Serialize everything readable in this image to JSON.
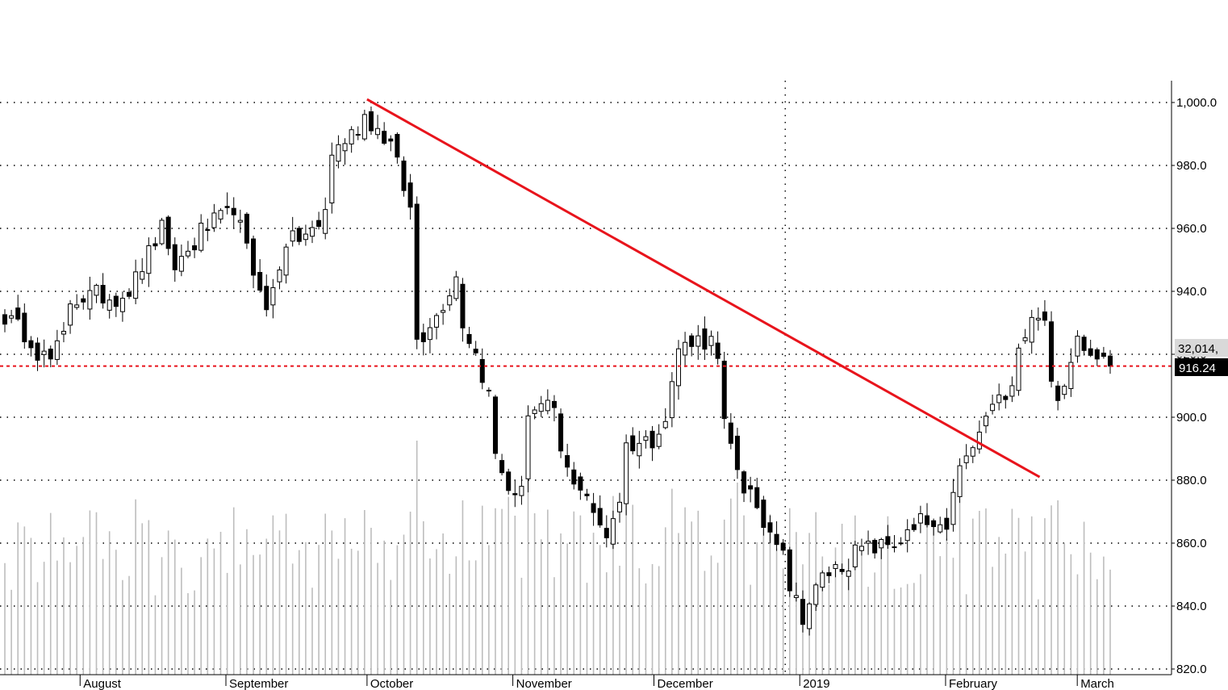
{
  "chart_data": {
    "type": "candlestick",
    "title": "",
    "xlabel": "",
    "ylabel": "",
    "ylim": [
      820,
      1000
    ],
    "y_ticks": [
      "1,000.0",
      "980.0",
      "960.0",
      "940.0",
      "920.0",
      "900.0",
      "880.0",
      "860.0",
      "840.0",
      "820.0"
    ],
    "y_tick_values": [
      1000,
      980,
      960,
      940,
      920,
      900,
      880,
      860,
      840,
      820
    ],
    "months": [
      {
        "label": "August",
        "date": "2018-08-01"
      },
      {
        "label": "September",
        "date": "2018-09-01"
      },
      {
        "label": "October",
        "date": "2018-10-01"
      },
      {
        "label": "November",
        "date": "2018-11-01"
      },
      {
        "label": "December",
        "date": "2018-12-01"
      },
      {
        "label": "2019",
        "date": "2019-01-01"
      },
      {
        "label": "February",
        "date": "2019-02-01"
      },
      {
        "label": "March",
        "date": "2019-03-01"
      }
    ],
    "date_range": [
      "2018-07-16",
      "2019-03-08"
    ],
    "last_price": 916.24,
    "last_price_label": "916.24",
    "volume_label": "32,014,",
    "trendline": {
      "start": {
        "date": "2018-10-01",
        "value": 1001
      },
      "end": {
        "date": "2019-02-21",
        "value": 881
      }
    },
    "price_line": 916.24,
    "grid": true,
    "candle_up_color": "#ffffff",
    "candle_down_color": "#000000",
    "trendline_color": "#e8141c",
    "volume_color": "#bdbdbd",
    "grid_color": "#000000",
    "anchors": [
      [
        "2018-07-16",
        932
      ],
      [
        "2018-07-20",
        925
      ],
      [
        "2018-07-25",
        918
      ],
      [
        "2018-07-30",
        937
      ],
      [
        "2018-08-03",
        939
      ],
      [
        "2018-08-08",
        938
      ],
      [
        "2018-08-13",
        944
      ],
      [
        "2018-08-17",
        960
      ],
      [
        "2018-08-21",
        948
      ],
      [
        "2018-08-24",
        955
      ],
      [
        "2018-08-29",
        962
      ],
      [
        "2018-09-03",
        967
      ],
      [
        "2018-09-06",
        946
      ],
      [
        "2018-09-10",
        933
      ],
      [
        "2018-09-13",
        956
      ],
      [
        "2018-09-17",
        957
      ],
      [
        "2018-09-20",
        960
      ],
      [
        "2018-09-24",
        984
      ],
      [
        "2018-09-28",
        992
      ],
      [
        "2018-10-01",
        996
      ],
      [
        "2018-10-04",
        989
      ],
      [
        "2018-10-08",
        980
      ],
      [
        "2018-10-10",
        966
      ],
      [
        "2018-10-11",
        925
      ],
      [
        "2018-10-16",
        932
      ],
      [
        "2018-10-19",
        945
      ],
      [
        "2018-10-24",
        920
      ],
      [
        "2018-10-29",
        888
      ],
      [
        "2018-11-01",
        873
      ],
      [
        "2018-11-05",
        901
      ],
      [
        "2018-11-09",
        903
      ],
      [
        "2018-11-13",
        883
      ],
      [
        "2018-11-19",
        868
      ],
      [
        "2018-11-21",
        863
      ],
      [
        "2018-11-26",
        891
      ],
      [
        "2018-11-30",
        893
      ],
      [
        "2018-12-04",
        899
      ],
      [
        "2018-12-06",
        922
      ],
      [
        "2018-12-10",
        925
      ],
      [
        "2018-12-13",
        924
      ],
      [
        "2018-12-17",
        897
      ],
      [
        "2018-12-20",
        878
      ],
      [
        "2018-12-25",
        866
      ],
      [
        "2018-12-28",
        860
      ],
      [
        "2019-01-02",
        837
      ],
      [
        "2019-01-04",
        845
      ],
      [
        "2019-01-09",
        852
      ],
      [
        "2019-01-15",
        858
      ],
      [
        "2019-01-22",
        860
      ],
      [
        "2019-01-28",
        867
      ],
      [
        "2019-02-01",
        862
      ],
      [
        "2019-02-05",
        883
      ],
      [
        "2019-02-08",
        894
      ],
      [
        "2019-02-13",
        905
      ],
      [
        "2019-02-18",
        923
      ],
      [
        "2019-02-21",
        934
      ],
      [
        "2019-02-26",
        905
      ],
      [
        "2019-03-01",
        927
      ],
      [
        "2019-03-05",
        922
      ],
      [
        "2019-03-08",
        916
      ]
    ]
  }
}
